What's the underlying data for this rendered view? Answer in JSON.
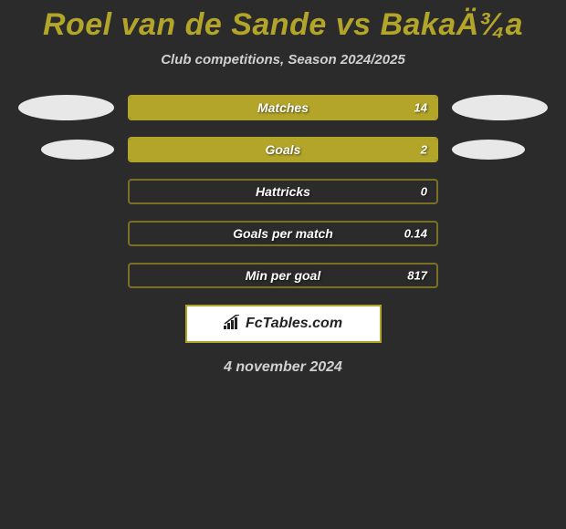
{
  "title": "Roel van de Sande vs BakaÄ¾a",
  "subtitle": "Club competitions, Season 2024/2025",
  "date": "4 november 2024",
  "logo_text": "FcTables.com",
  "colors": {
    "accent": "#b3a529",
    "bar_fill": "#b3a529",
    "bar_border": "#b3a529",
    "empty_border": "#7a7024",
    "background": "#2b2b2b"
  },
  "stats": [
    {
      "label": "Matches",
      "value": "14",
      "fill_pct": 100,
      "left_ellipse": "big",
      "right_ellipse": "big"
    },
    {
      "label": "Goals",
      "value": "2",
      "fill_pct": 100,
      "left_ellipse": "small",
      "right_ellipse": "small"
    },
    {
      "label": "Hattricks",
      "value": "0",
      "fill_pct": 0,
      "left_ellipse": "none",
      "right_ellipse": "none"
    },
    {
      "label": "Goals per match",
      "value": "0.14",
      "fill_pct": 0,
      "left_ellipse": "none",
      "right_ellipse": "none"
    },
    {
      "label": "Min per goal",
      "value": "817",
      "fill_pct": 0,
      "left_ellipse": "none",
      "right_ellipse": "none"
    }
  ]
}
